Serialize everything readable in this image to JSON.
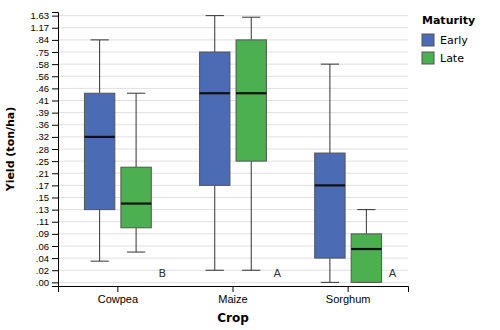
{
  "chart_data": {
    "type": "box",
    "x_label": "Crop",
    "y_label": "Yield (ton/ha)",
    "legend_title": "Maturity",
    "legend": "upper right",
    "grid": true,
    "categories": [
      "Cowpea",
      "Maize",
      "Sorghum"
    ],
    "series": [
      {
        "name": "Early",
        "color": "#4B6BB5",
        "q1": [
          0.13,
          0.17,
          0.04
        ],
        "median": [
          0.32,
          0.44,
          0.17
        ],
        "q3": [
          0.44,
          0.75,
          0.27
        ],
        "whisker_low": [
          0.035,
          0.02,
          0.0
        ],
        "whisker_high": [
          0.84,
          1.63,
          0.58
        ]
      },
      {
        "name": "Late",
        "color": "#4CAF50",
        "q1": [
          0.1,
          0.25,
          0.0
        ],
        "median": [
          0.14,
          0.44,
          0.055
        ],
        "q3": [
          0.23,
          0.84,
          0.09
        ],
        "whisker_low": [
          0.05,
          0.02,
          0.0
        ],
        "whisker_high": [
          0.44,
          1.57,
          0.13
        ]
      }
    ],
    "ylim": [
      -0.015,
      1.72
    ],
    "yticks": [
      {
        "value": 0.0,
        "label": ".00"
      },
      {
        "value": 0.02,
        "label": ".02"
      },
      {
        "value": 0.04,
        "label": ".04"
      },
      {
        "value": 0.06,
        "label": ".06"
      },
      {
        "value": 0.09,
        "label": ".09"
      },
      {
        "value": 0.11,
        "label": ".11"
      },
      {
        "value": 0.13,
        "label": ".13"
      },
      {
        "value": 0.15,
        "label": ".15"
      },
      {
        "value": 0.17,
        "label": ".17"
      },
      {
        "value": 0.21,
        "label": ".21"
      },
      {
        "value": 0.25,
        "label": ".25"
      },
      {
        "value": 0.28,
        "label": ".28"
      },
      {
        "value": 0.32,
        "label": ".32"
      },
      {
        "value": 0.36,
        "label": ".36"
      },
      {
        "value": 0.39,
        "label": ".39"
      },
      {
        "value": 0.41,
        "label": ".41"
      },
      {
        "value": 0.46,
        "label": ".46"
      },
      {
        "value": 0.56,
        "label": ".56"
      },
      {
        "value": 0.58,
        "label": ".58"
      },
      {
        "value": 0.75,
        "label": ".75"
      },
      {
        "value": 0.84,
        "label": ".84"
      },
      1.17,
      1.63
    ],
    "annotations": [
      {
        "text": "B",
        "category": "Cowpea",
        "y": 0.005
      },
      {
        "text": "A",
        "category": "Maize",
        "y": 0.005
      },
      {
        "text": "A",
        "category": "Sorghum",
        "y": 0.005
      }
    ]
  }
}
